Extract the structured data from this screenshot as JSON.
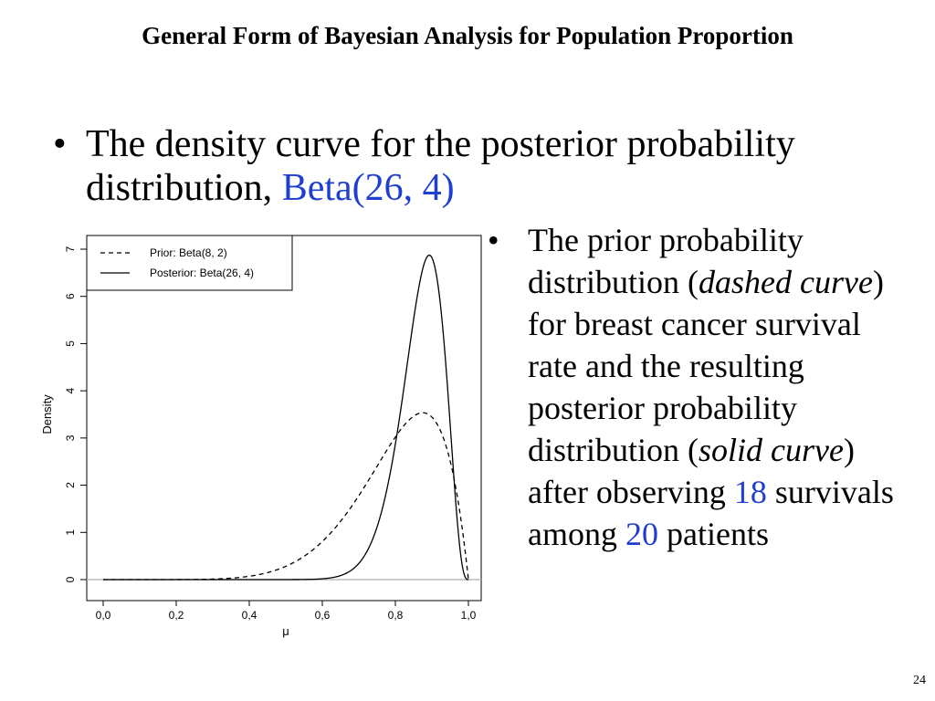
{
  "slide": {
    "title": "General Form of Bayesian Analysis for Population Proportion",
    "page_number": "24"
  },
  "bullet1": {
    "text": "The density curve for the posterior probability distribution, ",
    "highlight": "Beta(26, 4)"
  },
  "bullet2": {
    "p1": "The prior probability distribution (",
    "p2": "dashed curve",
    "p3": ") for breast cancer survival rate and the resulting posterior probability distribution (",
    "p4": "solid curve",
    "p5": ") after observing ",
    "n_survivals": "18",
    "p6": " survivals among ",
    "n_patients": "20",
    "p7": " patients"
  },
  "colors": {
    "accent": "#1f3fd1"
  },
  "chart_data": {
    "type": "line",
    "xlabel": "μ",
    "ylabel": "Density",
    "xlim": [
      0,
      1
    ],
    "ylim": [
      0,
      7
    ],
    "x_ticks": [
      "0.0",
      "0.2",
      "0.4",
      "0.6",
      "0.8",
      "1.0"
    ],
    "y_ticks": [
      "0",
      "1",
      "2",
      "3",
      "4",
      "5",
      "6",
      "7"
    ],
    "legend_position": "top-left",
    "series": [
      {
        "name": "Prior: Beta(8, 2)",
        "style": "dashed",
        "alpha": 8,
        "beta": 2
      },
      {
        "name": "Posterior: Beta(26, 4)",
        "style": "solid",
        "alpha": 26,
        "beta": 4
      }
    ]
  }
}
